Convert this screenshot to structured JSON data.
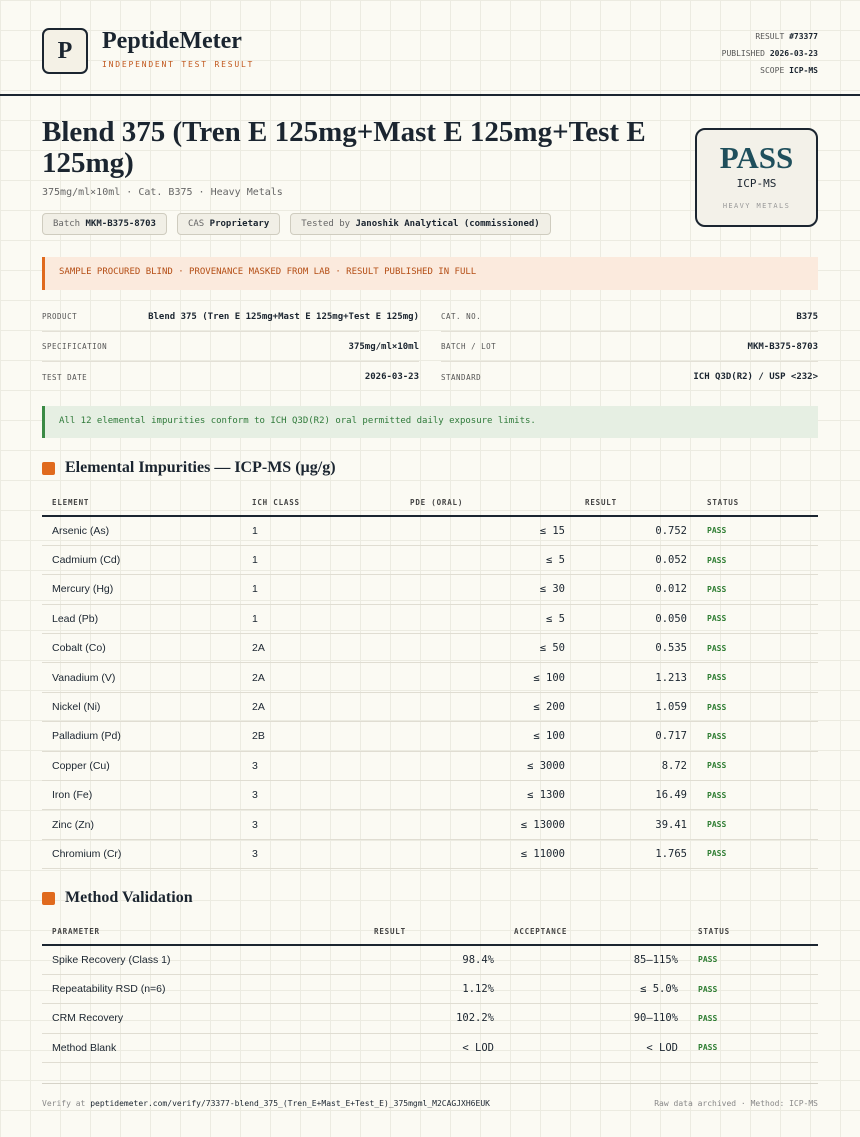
{
  "header": {
    "logo_letter": "P",
    "brand": "PeptideMeter",
    "tagline": "INDEPENDENT TEST RESULT",
    "meta": [
      {
        "label": "RESULT",
        "value": "#73377"
      },
      {
        "label": "PUBLISHED",
        "value": "2026-03-23"
      },
      {
        "label": "SCOPE",
        "value": "ICP-MS"
      }
    ]
  },
  "product": {
    "title": "Blend 375 (Tren E 125mg+Mast E 125mg+Test E 125mg)",
    "subtitle": "375mg/ml×10ml · Cat. B375 · Heavy Metals",
    "chips": [
      {
        "label": "Batch",
        "value": "MKM-B375-8703"
      },
      {
        "label": "CAS",
        "value": "Proprietary"
      },
      {
        "label": "Tested by",
        "value": "Janoshik Analytical (commissioned)"
      }
    ]
  },
  "badge": {
    "status": "PASS",
    "method": "ICP-MS",
    "scope": "HEAVY METALS"
  },
  "notice": "SAMPLE PROCURED BLIND · PROVENANCE MASKED FROM LAB · RESULT PUBLISHED IN FULL",
  "details": {
    "left": [
      {
        "label": "PRODUCT",
        "value": "Blend 375 (Tren E 125mg+Mast E 125mg+Test E 125mg)"
      },
      {
        "label": "SPECIFICATION",
        "value": "375mg/ml×10ml"
      },
      {
        "label": "TEST DATE",
        "value": "2026-03-23"
      }
    ],
    "right": [
      {
        "label": "CAT. NO.",
        "value": "B375"
      },
      {
        "label": "BATCH / LOT",
        "value": "MKM-B375-8703"
      },
      {
        "label": "STANDARD",
        "value": "ICH Q3D(R2) / USP <232>"
      }
    ]
  },
  "conformity": "All 12 elemental impurities conform to ICH Q3D(R2) oral permitted daily exposure limits.",
  "impurities": {
    "title": "Elemental Impurities — ICP-MS (µg/g)",
    "columns": [
      "ELEMENT",
      "ICH CLASS",
      "PDE (ORAL)",
      "RESULT",
      "STATUS"
    ],
    "rows": [
      [
        "Arsenic (As)",
        "1",
        "≤ 15",
        "0.752",
        "PASS"
      ],
      [
        "Cadmium (Cd)",
        "1",
        "≤ 5",
        "0.052",
        "PASS"
      ],
      [
        "Mercury (Hg)",
        "1",
        "≤ 30",
        "0.012",
        "PASS"
      ],
      [
        "Lead (Pb)",
        "1",
        "≤ 5",
        "0.050",
        "PASS"
      ],
      [
        "Cobalt (Co)",
        "2A",
        "≤ 50",
        "0.535",
        "PASS"
      ],
      [
        "Vanadium (V)",
        "2A",
        "≤ 100",
        "1.213",
        "PASS"
      ],
      [
        "Nickel (Ni)",
        "2A",
        "≤ 200",
        "1.059",
        "PASS"
      ],
      [
        "Palladium (Pd)",
        "2B",
        "≤ 100",
        "0.717",
        "PASS"
      ],
      [
        "Copper (Cu)",
        "3",
        "≤ 3000",
        "8.72",
        "PASS"
      ],
      [
        "Iron (Fe)",
        "3",
        "≤ 1300",
        "16.49",
        "PASS"
      ],
      [
        "Zinc (Zn)",
        "3",
        "≤ 13000",
        "39.41",
        "PASS"
      ],
      [
        "Chromium (Cr)",
        "3",
        "≤ 11000",
        "1.765",
        "PASS"
      ]
    ]
  },
  "validation": {
    "title": "Method Validation",
    "columns": [
      "PARAMETER",
      "RESULT",
      "ACCEPTANCE",
      "STATUS"
    ],
    "rows": [
      [
        "Spike Recovery (Class 1)",
        "98.4%",
        "85–115%",
        "PASS"
      ],
      [
        "Repeatability RSD (n=6)",
        "1.12%",
        "≤ 5.0%",
        "PASS"
      ],
      [
        "CRM Recovery",
        "102.2%",
        "90–110%",
        "PASS"
      ],
      [
        "Method Blank",
        "< LOD",
        "< LOD",
        "PASS"
      ]
    ]
  },
  "footer": {
    "verify_prefix": "Verify at",
    "url": "peptidemeter.com/verify/73377-blend_375_(Tren_E+Mast_E+Test_E)_375mgml_M2CAGJXH6EUK",
    "note": "Raw data archived · Method: ICP-MS"
  }
}
